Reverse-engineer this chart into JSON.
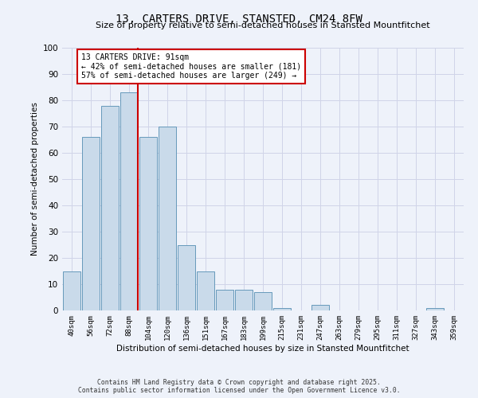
{
  "title": "13, CARTERS DRIVE, STANSTED, CM24 8FW",
  "subtitle": "Size of property relative to semi-detached houses in Stansted Mountfitchet",
  "xlabel": "Distribution of semi-detached houses by size in Stansted Mountfitchet",
  "ylabel": "Number of semi-detached properties",
  "categories": [
    "40sqm",
    "56sqm",
    "72sqm",
    "88sqm",
    "104sqm",
    "120sqm",
    "136sqm",
    "151sqm",
    "167sqm",
    "183sqm",
    "199sqm",
    "215sqm",
    "231sqm",
    "247sqm",
    "263sqm",
    "279sqm",
    "295sqm",
    "311sqm",
    "327sqm",
    "343sqm",
    "359sqm"
  ],
  "values": [
    15,
    66,
    78,
    83,
    66,
    70,
    25,
    15,
    8,
    8,
    7,
    1,
    0,
    2,
    0,
    0,
    0,
    0,
    0,
    1,
    0
  ],
  "bar_color": "#c9daea",
  "bar_edge_color": "#6699bb",
  "red_line_index": 3,
  "annotation_title": "13 CARTERS DRIVE: 91sqm",
  "annotation_line1": "← 42% of semi-detached houses are smaller (181)",
  "annotation_line2": "57% of semi-detached houses are larger (249) →",
  "annotation_box_color": "#ffffff",
  "annotation_box_edge": "#cc0000",
  "red_line_color": "#cc0000",
  "footer1": "Contains HM Land Registry data © Crown copyright and database right 2025.",
  "footer2": "Contains public sector information licensed under the Open Government Licence v3.0.",
  "ylim": [
    0,
    100
  ],
  "grid_color": "#d0d4e8",
  "background_color": "#eef2fa"
}
